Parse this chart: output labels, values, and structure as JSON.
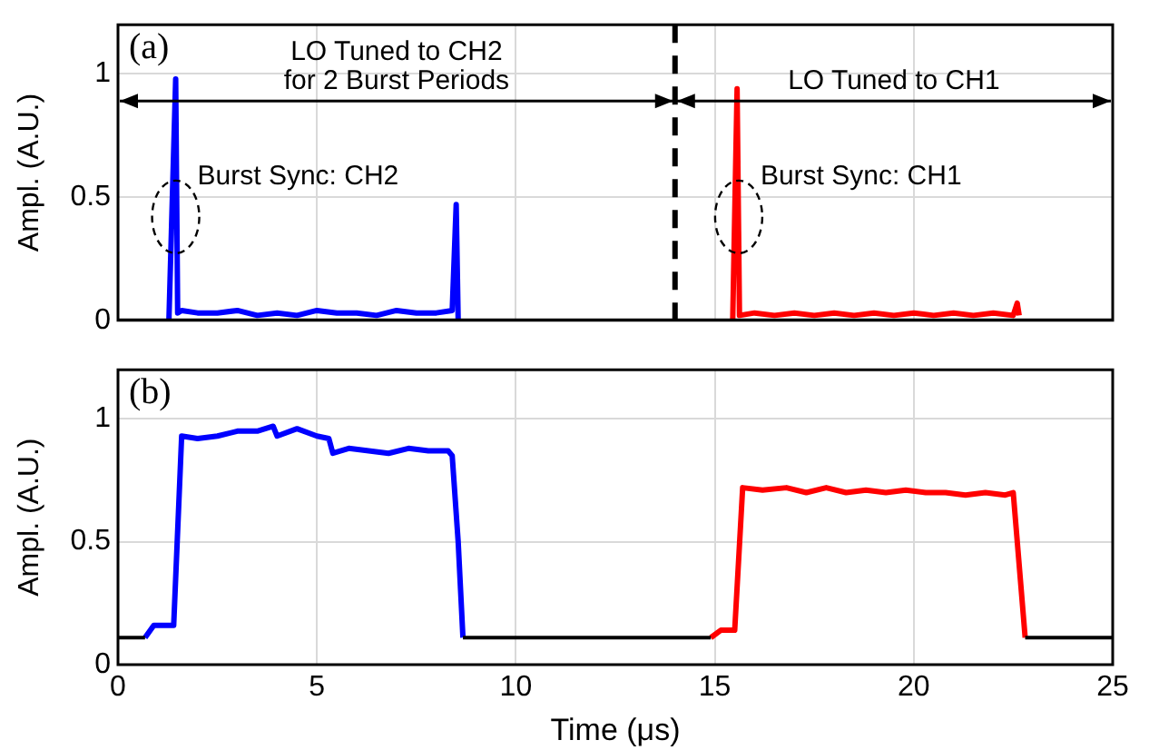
{
  "chart_data": [
    {
      "type": "line",
      "ylabel": "Ampl. (A.U.)",
      "xlim": [
        0,
        25
      ],
      "xticks": [
        0,
        5,
        10,
        15,
        20,
        25
      ],
      "ylim": [
        0,
        1.2
      ],
      "yticks": [
        0,
        0.5,
        1
      ],
      "tick_labels": "y",
      "grid": true,
      "line_style": "solid",
      "marker": "none",
      "ref_lines": [
        {
          "axis": "x",
          "value": 14,
          "color": "#000000",
          "line_style": "dashed"
        }
      ],
      "annotations": [
        "(a)",
        "LO Tuned to CH2\nfor 2 Burst Periods",
        "LO Tuned to CH1",
        {
          "text": "Burst Sync: CH2",
          "x": 1.45,
          "y": 0.42
        },
        {
          "text": "Burst Sync: CH1",
          "x": 15.6,
          "y": 0.42
        }
      ],
      "series": [
        {
          "color": "#000000",
          "x": [
            0,
            25
          ],
          "values": [
            0,
            0
          ]
        },
        {
          "color": "#0000ff",
          "x": [
            1.28,
            1.45,
            1.5,
            1.6,
            2,
            2.5,
            3,
            3.5,
            4,
            4.5,
            5,
            5.5,
            6,
            6.5,
            7,
            7.5,
            8,
            8.4,
            8.5,
            8.55
          ],
          "values": [
            0,
            0.98,
            0.03,
            0.04,
            0.03,
            0.03,
            0.04,
            0.02,
            0.03,
            0.02,
            0.04,
            0.03,
            0.03,
            0.02,
            0.04,
            0.03,
            0.03,
            0.04,
            0.47,
            0
          ]
        },
        {
          "color": "#ff0000",
          "x": [
            15.45,
            15.56,
            15.62,
            16,
            16.5,
            17,
            17.5,
            18,
            18.5,
            19,
            19.5,
            20,
            20.5,
            21,
            21.5,
            22,
            22.5,
            22.6,
            22.65
          ],
          "values": [
            0,
            0.94,
            0.02,
            0.03,
            0.02,
            0.03,
            0.02,
            0.03,
            0.02,
            0.03,
            0.02,
            0.03,
            0.02,
            0.03,
            0.02,
            0.03,
            0.02,
            0.07,
            0.02
          ]
        }
      ]
    },
    {
      "type": "line",
      "ylabel": "Ampl. (A.U.)",
      "xlabel": "Time (μs)",
      "xlim": [
        0,
        25
      ],
      "xticks": [
        0,
        5,
        10,
        15,
        20,
        25
      ],
      "ylim": [
        0,
        1.2
      ],
      "yticks": [
        0,
        0.5,
        1
      ],
      "grid": true,
      "line_style": "solid",
      "marker": "none",
      "annotations": [
        "(b)"
      ],
      "series": [
        {
          "color": "#000000",
          "x": [
            0,
            0.68,
            0.7,
            8.67,
            14.9,
            14.95,
            22.8,
            25
          ],
          "values": [
            0.11,
            0.11,
            null,
            0.11,
            0.11,
            null,
            0.11,
            0.11
          ]
        },
        {
          "color": "#0000ff",
          "x": [
            0.68,
            0.9,
            1.4,
            1.6,
            2,
            2.5,
            3,
            3.5,
            3.9,
            4,
            4.5,
            5,
            5.3,
            5.4,
            5.8,
            6.3,
            6.8,
            7.3,
            7.8,
            8.3,
            8.4,
            8.55,
            8.67
          ],
          "values": [
            0.11,
            0.16,
            0.16,
            0.93,
            0.92,
            0.93,
            0.95,
            0.95,
            0.97,
            0.93,
            0.96,
            0.93,
            0.92,
            0.86,
            0.88,
            0.87,
            0.86,
            0.88,
            0.87,
            0.87,
            0.85,
            0.5,
            0.11
          ]
        },
        {
          "color": "#ff0000",
          "x": [
            14.9,
            15.15,
            15.5,
            15.7,
            16.2,
            16.8,
            17.3,
            17.8,
            18.3,
            18.8,
            19.3,
            19.8,
            20.3,
            20.8,
            21.3,
            21.8,
            22.3,
            22.5,
            22.8
          ],
          "values": [
            0.11,
            0.14,
            0.14,
            0.72,
            0.71,
            0.72,
            0.7,
            0.72,
            0.7,
            0.71,
            0.7,
            0.71,
            0.7,
            0.7,
            0.69,
            0.7,
            0.69,
            0.7,
            0.11
          ]
        }
      ]
    }
  ]
}
